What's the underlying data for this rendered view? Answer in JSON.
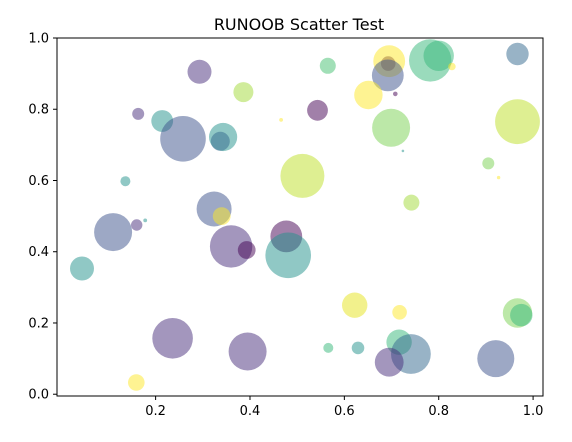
{
  "chart_data": {
    "type": "scatter",
    "title": "RUNOOB Scatter Test",
    "xlabel": "",
    "ylabel": "",
    "xlim": [
      0.0,
      1.0
    ],
    "ylim": [
      0.0,
      1.0
    ],
    "x_ticks": [
      "0.2",
      "0.4",
      "0.6",
      "0.8",
      "1.0"
    ],
    "y_ticks": [
      "0.0",
      "0.2",
      "0.4",
      "0.6",
      "0.8",
      "1.0"
    ],
    "grid": false,
    "colormap": "viridis",
    "alpha": 0.5,
    "points": [
      {
        "x": 0.293,
        "y": 0.905,
        "size": 400,
        "color": "#472d7b"
      },
      {
        "x": 0.386,
        "y": 0.848,
        "size": 280,
        "color": "#a2da37"
      },
      {
        "x": 0.565,
        "y": 0.922,
        "size": 180,
        "color": "#44bf70"
      },
      {
        "x": 0.693,
        "y": 0.928,
        "size": 150,
        "color": "#440154"
      },
      {
        "x": 0.695,
        "y": 0.935,
        "size": 700,
        "color": "#fde725"
      },
      {
        "x": 0.692,
        "y": 0.895,
        "size": 700,
        "color": "#3b528b"
      },
      {
        "x": 0.782,
        "y": 0.937,
        "size": 1250,
        "color": "#35b779"
      },
      {
        "x": 0.8,
        "y": 0.95,
        "size": 640,
        "color": "#35b779"
      },
      {
        "x": 0.828,
        "y": 0.92,
        "size": 40,
        "color": "#fde725"
      },
      {
        "x": 0.967,
        "y": 0.955,
        "size": 350,
        "color": "#31688e"
      },
      {
        "x": 0.163,
        "y": 0.787,
        "size": 100,
        "color": "#472d7b"
      },
      {
        "x": 0.214,
        "y": 0.767,
        "size": 330,
        "color": "#21918c"
      },
      {
        "x": 0.258,
        "y": 0.717,
        "size": 1450,
        "color": "#3b528b"
      },
      {
        "x": 0.343,
        "y": 0.722,
        "size": 550,
        "color": "#21918c"
      },
      {
        "x": 0.337,
        "y": 0.71,
        "size": 250,
        "color": "#31688e"
      },
      {
        "x": 0.466,
        "y": 0.77,
        "size": 10,
        "color": "#fde725"
      },
      {
        "x": 0.543,
        "y": 0.797,
        "size": 300,
        "color": "#440154"
      },
      {
        "x": 0.651,
        "y": 0.84,
        "size": 560,
        "color": "#fde725"
      },
      {
        "x": 0.708,
        "y": 0.843,
        "size": 15,
        "color": "#440154"
      },
      {
        "x": 0.699,
        "y": 0.748,
        "size": 1000,
        "color": "#7ad151"
      },
      {
        "x": 0.967,
        "y": 0.765,
        "size": 1400,
        "color": "#bddf26"
      },
      {
        "x": 0.511,
        "y": 0.613,
        "size": 1350,
        "color": "#bddf26"
      },
      {
        "x": 0.724,
        "y": 0.683,
        "size": 5,
        "color": "#21918c"
      },
      {
        "x": 0.136,
        "y": 0.598,
        "size": 70,
        "color": "#21918c"
      },
      {
        "x": 0.905,
        "y": 0.648,
        "size": 100,
        "color": "#7ad151"
      },
      {
        "x": 0.927,
        "y": 0.608,
        "size": 8,
        "color": "#fde725"
      },
      {
        "x": 0.742,
        "y": 0.538,
        "size": 180,
        "color": "#a2da37"
      },
      {
        "x": 0.11,
        "y": 0.455,
        "size": 1000,
        "color": "#3b528b"
      },
      {
        "x": 0.16,
        "y": 0.475,
        "size": 90,
        "color": "#472d7b"
      },
      {
        "x": 0.178,
        "y": 0.488,
        "size": 10,
        "color": "#21918c"
      },
      {
        "x": 0.324,
        "y": 0.52,
        "size": 850,
        "color": "#3b528b"
      },
      {
        "x": 0.34,
        "y": 0.5,
        "size": 220,
        "color": "#fde725"
      },
      {
        "x": 0.36,
        "y": 0.415,
        "size": 1250,
        "color": "#472d7b"
      },
      {
        "x": 0.393,
        "y": 0.405,
        "size": 220,
        "color": "#440154"
      },
      {
        "x": 0.477,
        "y": 0.443,
        "size": 700,
        "color": "#440154"
      },
      {
        "x": 0.481,
        "y": 0.39,
        "size": 1450,
        "color": "#21918c"
      },
      {
        "x": 0.044,
        "y": 0.353,
        "size": 400,
        "color": "#21918c"
      },
      {
        "x": 0.622,
        "y": 0.25,
        "size": 450,
        "color": "#e6e419"
      },
      {
        "x": 0.717,
        "y": 0.23,
        "size": 150,
        "color": "#fde725"
      },
      {
        "x": 0.716,
        "y": 0.146,
        "size": 450,
        "color": "#35b779"
      },
      {
        "x": 0.741,
        "y": 0.113,
        "size": 1100,
        "color": "#31688e"
      },
      {
        "x": 0.695,
        "y": 0.09,
        "size": 580,
        "color": "#472d7b"
      },
      {
        "x": 0.967,
        "y": 0.228,
        "size": 600,
        "color": "#7ad151"
      },
      {
        "x": 0.975,
        "y": 0.222,
        "size": 350,
        "color": "#35b779"
      },
      {
        "x": 0.236,
        "y": 0.157,
        "size": 1150,
        "color": "#472d7b"
      },
      {
        "x": 0.395,
        "y": 0.12,
        "size": 1000,
        "color": "#472d7b"
      },
      {
        "x": 0.566,
        "y": 0.13,
        "size": 70,
        "color": "#35b779"
      },
      {
        "x": 0.629,
        "y": 0.13,
        "size": 110,
        "color": "#21918c"
      },
      {
        "x": 0.921,
        "y": 0.1,
        "size": 950,
        "color": "#3b528b"
      },
      {
        "x": 0.159,
        "y": 0.033,
        "size": 190,
        "color": "#fde725"
      }
    ]
  }
}
